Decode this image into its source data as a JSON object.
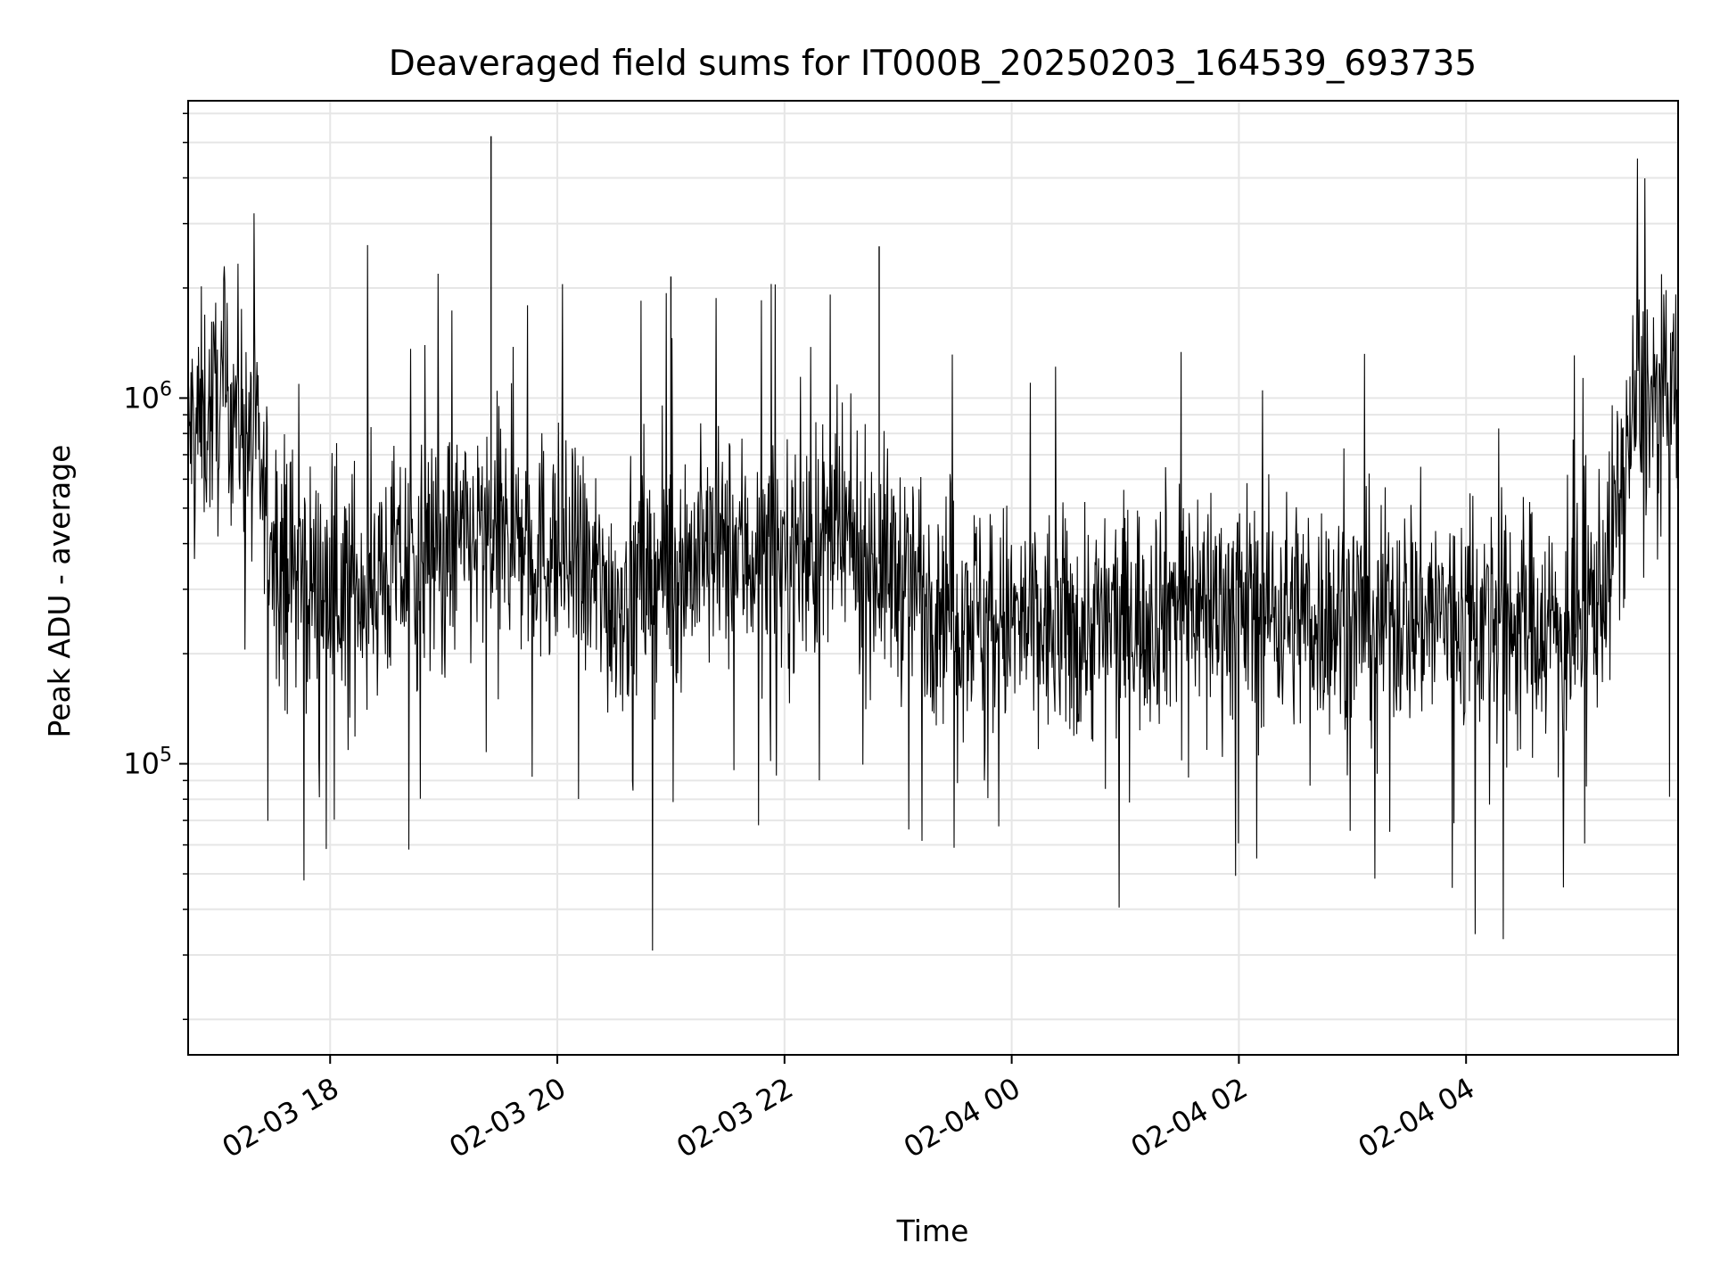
{
  "chart_data": {
    "type": "line",
    "title": "Deaveraged field sums for IT000B_20250203_164539_693735",
    "xlabel": "Time",
    "ylabel": "Peak ADU - average",
    "x_ticks": [
      "02-03 18",
      "02-03 20",
      "02-03 22",
      "02-04 00",
      "02-04 02",
      "02-04 04"
    ],
    "y_ticks": [
      {
        "base": "10",
        "exp": "5",
        "value": 100000
      },
      {
        "base": "10",
        "exp": "6",
        "value": 1000000
      }
    ],
    "y_scale": "log",
    "ylim": [
      16000,
      6500000
    ],
    "xlim": [
      "2025-02-03 16:45",
      "2025-02-04 05:52"
    ],
    "grid": true,
    "line_color": "#000000",
    "grid_color": "#e6e6e6",
    "series": [
      {
        "x": [
          "2025-02-03 16:45",
          "2025-02-03 17:00",
          "2025-02-03 17:10",
          "2025-02-03 17:20",
          "2025-02-03 17:30",
          "2025-02-03 17:45",
          "2025-02-03 18:00",
          "2025-02-03 18:30",
          "2025-02-03 19:00",
          "2025-02-03 19:30",
          "2025-02-03 20:00",
          "2025-02-03 20:30",
          "2025-02-03 21:00",
          "2025-02-03 21:30",
          "2025-02-03 22:00",
          "2025-02-03 22:30",
          "2025-02-03 23:00",
          "2025-02-03 23:30",
          "2025-02-04 00:00",
          "2025-02-04 00:30",
          "2025-02-04 01:00",
          "2025-02-04 01:30",
          "2025-02-04 02:00",
          "2025-02-04 02:30",
          "2025-02-04 03:00",
          "2025-02-04 03:30",
          "2025-02-04 04:00",
          "2025-02-04 04:30",
          "2025-02-04 05:00",
          "2025-02-04 05:15",
          "2025-02-04 05:30",
          "2025-02-04 05:52"
        ],
        "y": [
          800000,
          950000,
          1000000,
          700000,
          400000,
          320000,
          300000,
          330000,
          380000,
          420000,
          380000,
          280000,
          350000,
          380000,
          370000,
          400000,
          330000,
          280000,
          240000,
          230000,
          250000,
          290000,
          270000,
          260000,
          250000,
          260000,
          250000,
          250000,
          230000,
          350000,
          1000000,
          950000
        ]
      }
    ]
  }
}
